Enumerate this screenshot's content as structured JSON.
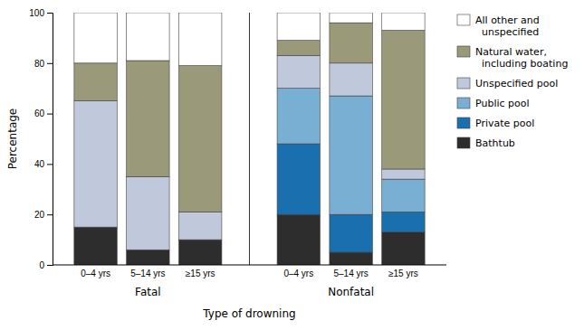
{
  "chart_data": {
    "type": "bar",
    "stacked": true,
    "xlabel": "Type of drowning",
    "ylabel": "Percentage",
    "categories": [
      "0–4 yrs",
      "5–14 yrs",
      "≥15 yrs",
      "0–4 yrs",
      "5–14 yrs",
      "≥15 yrs"
    ],
    "group_labels": [
      "Fatal",
      "Nonfatal"
    ],
    "ylim": [
      0,
      100
    ],
    "yticks": [
      0,
      20,
      40,
      60,
      80,
      100
    ],
    "legend": "right",
    "series": [
      {
        "name": "Bathtub",
        "color": "#2d2d2d",
        "values": [
          15,
          6,
          10,
          20,
          5,
          13
        ]
      },
      {
        "name": "Private pool",
        "color": "#1a6faf",
        "values": [
          0,
          0,
          0,
          28,
          15,
          8
        ]
      },
      {
        "name": "Public pool",
        "color": "#7aafd4",
        "values": [
          0,
          0,
          0,
          22,
          47,
          13
        ]
      },
      {
        "name": "Unspecified pool",
        "color": "#c0c8dc",
        "values": [
          50,
          29,
          11,
          13,
          13,
          4
        ]
      },
      {
        "name": "Natural water,\n  including boating",
        "color": "#9a9a7a",
        "values": [
          15,
          46,
          58,
          6,
          16,
          55
        ]
      },
      {
        "name": "All other and\n  unspecified",
        "color": "#ffffff",
        "values": [
          20,
          19,
          21,
          11,
          4,
          7
        ]
      }
    ]
  }
}
